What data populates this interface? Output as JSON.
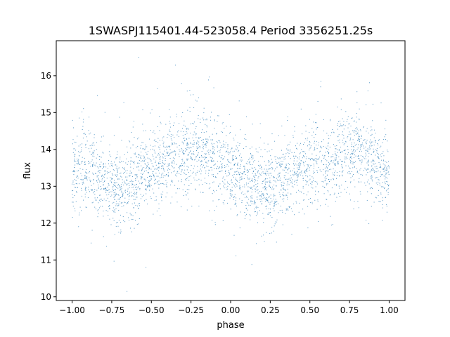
{
  "chart_data": {
    "type": "scatter",
    "title": "1SWASPJ115401.44-523058.4 Period 3356251.25s",
    "xlabel": "phase",
    "ylabel": "flux",
    "xlim": [
      -1.1,
      1.1
    ],
    "ylim": [
      9.9,
      16.95
    ],
    "xticks": [
      -1.0,
      -0.75,
      -0.5,
      -0.25,
      0.0,
      0.25,
      0.5,
      0.75,
      1.0
    ],
    "xtick_labels": [
      "−1.00",
      "−0.75",
      "−0.50",
      "−0.25",
      "0.00",
      "0.25",
      "0.50",
      "0.75",
      "1.00"
    ],
    "yticks": [
      10,
      11,
      12,
      13,
      14,
      15,
      16
    ],
    "ytick_labels": [
      "10",
      "11",
      "12",
      "13",
      "14",
      "15",
      "16"
    ],
    "grid": false,
    "legend": "none",
    "marker_color": "#1f77b4",
    "series": [
      {
        "phase": [
          -1.0,
          -0.9,
          -0.8,
          -0.7,
          -0.6,
          -0.5,
          -0.4,
          -0.3,
          -0.2,
          -0.1,
          0.0,
          0.1,
          0.2,
          0.3,
          0.4,
          0.5,
          0.6,
          0.7,
          0.8,
          0.9,
          1.0
        ],
        "flux_mean": [
          13.3,
          13.6,
          13.1,
          12.9,
          13.2,
          13.5,
          13.6,
          13.9,
          14.0,
          13.7,
          13.4,
          13.3,
          12.9,
          13.0,
          13.3,
          13.6,
          13.6,
          13.9,
          14.0,
          13.7,
          13.3
        ]
      }
    ]
  }
}
